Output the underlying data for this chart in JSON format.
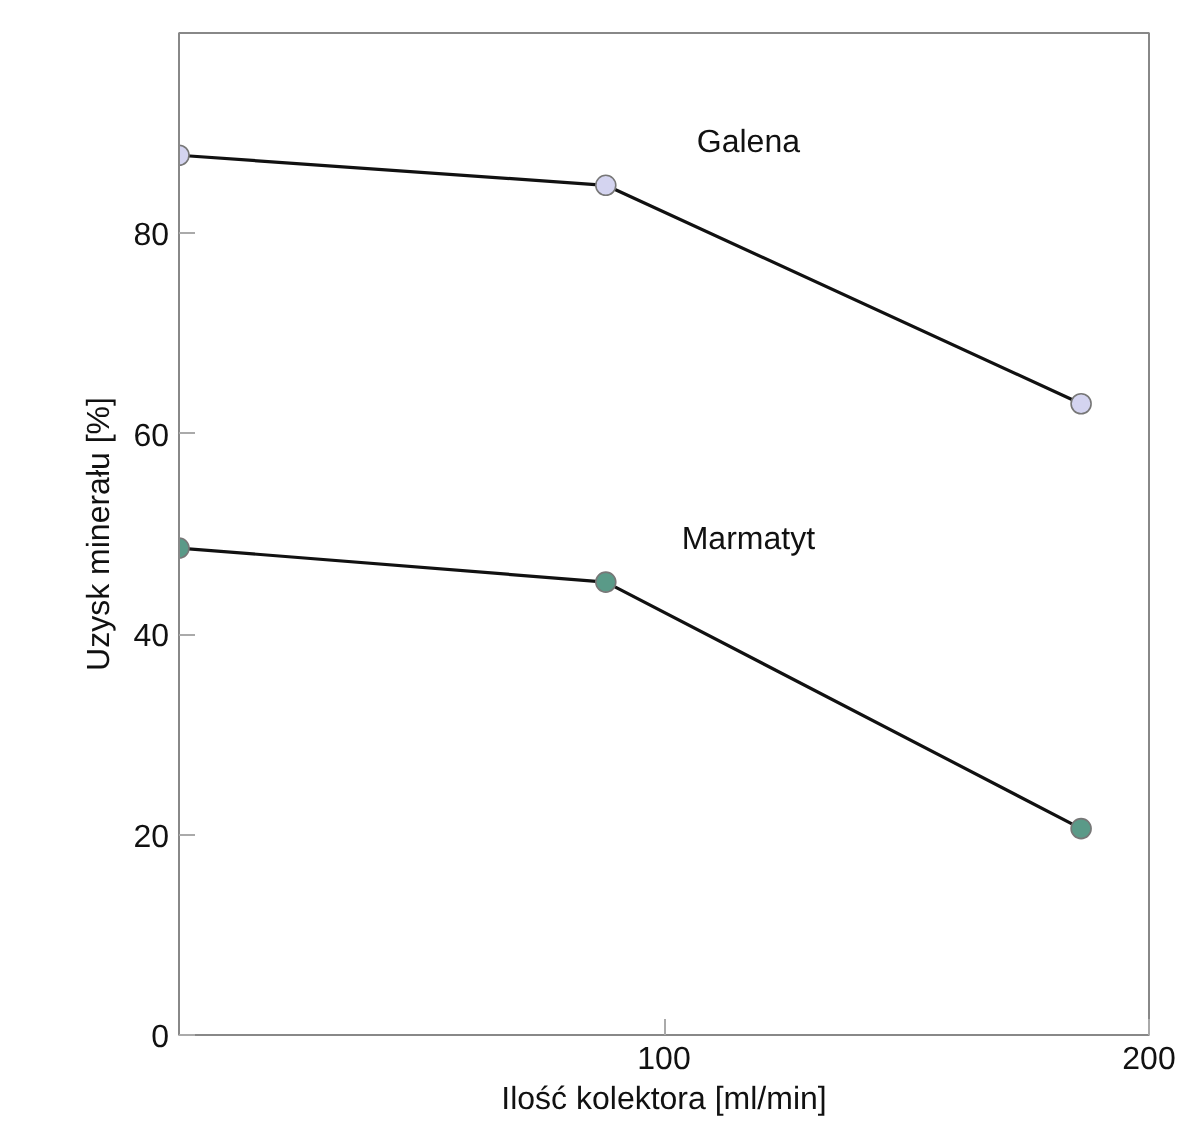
{
  "chart_data": {
    "type": "line",
    "xlabel": "Ilość kolektora [ml/min]",
    "ylabel": "Uzysk minerału [%]",
    "x": [
      0,
      88,
      186
    ],
    "xlim": [
      0,
      200
    ],
    "xticks": [
      100,
      200
    ],
    "ylim": [
      0,
      100
    ],
    "yticks": [
      0,
      20,
      40,
      60,
      80
    ],
    "grid": false,
    "marker": "circle",
    "line_style": "solid",
    "series": [
      {
        "name": "Galena",
        "color": "#d4d4f0",
        "values": [
          87.8,
          84.8,
          63
        ]
      },
      {
        "name": "Marmatyt",
        "color": "#5a9a88",
        "values": [
          48.6,
          45.2,
          20.6
        ]
      }
    ]
  }
}
